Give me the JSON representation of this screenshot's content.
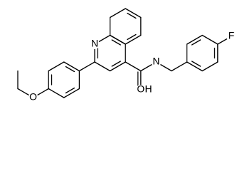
{
  "atoms": [
    {
      "label": "N"
    },
    {
      "label": "N"
    },
    {
      "label": "O"
    },
    {
      "label": "H"
    },
    {
      "label": "O"
    },
    {
      "label": "F"
    }
  ]
}
